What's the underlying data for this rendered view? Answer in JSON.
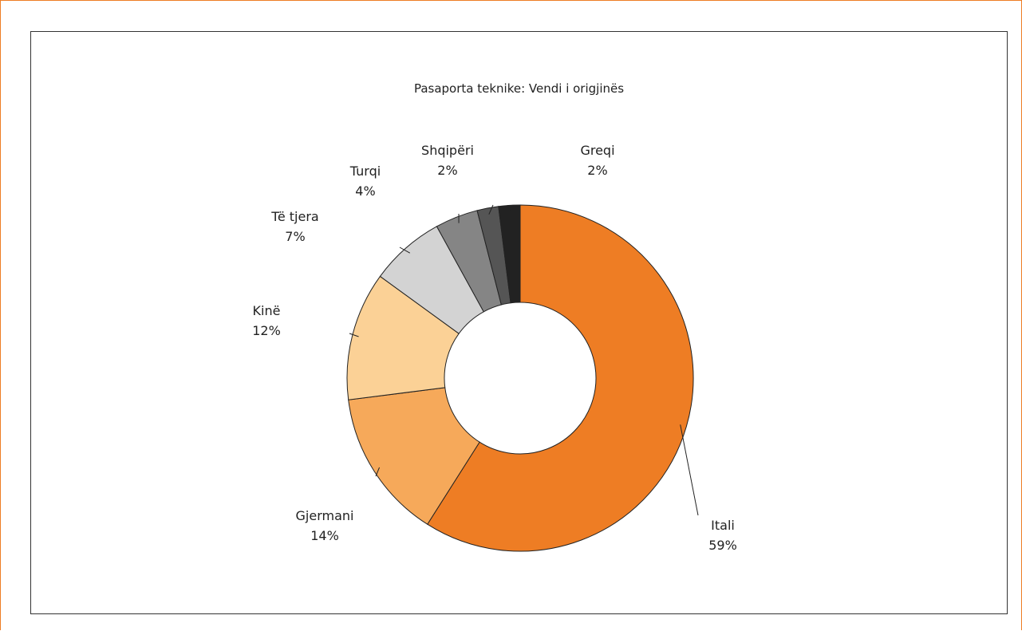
{
  "chart_data": {
    "type": "pie",
    "title": "Pasaporta teknike: Vendi i origjinës",
    "donut": true,
    "slices": [
      {
        "label": "Itali",
        "value": 59,
        "value_label": "59%",
        "color": "#ee7d24"
      },
      {
        "label": "Gjermani",
        "value": 14,
        "value_label": "14%",
        "color": "#f6a95a"
      },
      {
        "label": "Kinë",
        "value": 12,
        "value_label": "12%",
        "color": "#fbd196"
      },
      {
        "label": "Të tjera",
        "value": 7,
        "value_label": "7%",
        "color": "#d3d3d3"
      },
      {
        "label": "Turqi",
        "value": 4,
        "value_label": "4%",
        "color": "#858585"
      },
      {
        "label": "Shqipëri",
        "value": 2,
        "value_label": "2%",
        "color": "#555555"
      },
      {
        "label": "Greqi",
        "value": 2,
        "value_label": "2%",
        "color": "#222222"
      }
    ]
  }
}
